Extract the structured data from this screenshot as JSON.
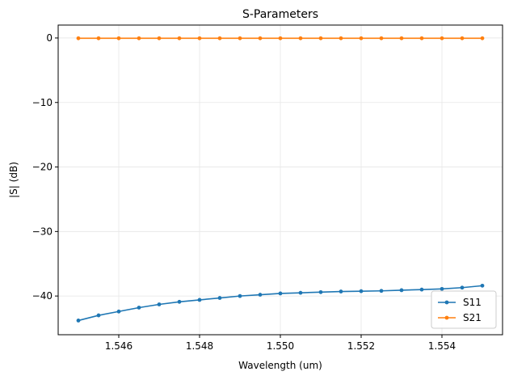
{
  "chart_data": {
    "type": "line",
    "title": "S-Parameters",
    "xlabel": "Wavelength (um)",
    "ylabel": "|S| (dB)",
    "xlim": [
      1.5445,
      1.5555
    ],
    "ylim": [
      -46,
      2
    ],
    "xticks": [
      1.546,
      1.548,
      1.55,
      1.552,
      1.554
    ],
    "xtick_labels": [
      "1.546",
      "1.548",
      "1.550",
      "1.552",
      "1.554"
    ],
    "yticks": [
      0,
      -10,
      -20,
      -30,
      -40
    ],
    "ytick_labels": [
      "0",
      "−10",
      "−20",
      "−30",
      "−40"
    ],
    "grid": true,
    "legend_position": "lower-right",
    "x": [
      1.545,
      1.5455,
      1.546,
      1.5465,
      1.547,
      1.5475,
      1.548,
      1.5485,
      1.549,
      1.5495,
      1.55,
      1.5505,
      1.551,
      1.5515,
      1.552,
      1.5525,
      1.553,
      1.5535,
      1.554,
      1.5545,
      1.555
    ],
    "series": [
      {
        "name": "S11",
        "color": "#1f77b4",
        "values": [
          -43.8,
          -43.0,
          -42.4,
          -41.8,
          -41.3,
          -40.9,
          -40.6,
          -40.3,
          -40.0,
          -39.8,
          -39.6,
          -39.5,
          -39.4,
          -39.3,
          -39.25,
          -39.2,
          -39.1,
          -39.0,
          -38.9,
          -38.7,
          -38.4
        ]
      },
      {
        "name": "S21",
        "color": "#ff7f0e",
        "values": [
          -0.05,
          -0.05,
          -0.05,
          -0.05,
          -0.05,
          -0.05,
          -0.05,
          -0.05,
          -0.05,
          -0.05,
          -0.05,
          -0.05,
          -0.05,
          -0.05,
          -0.05,
          -0.05,
          -0.05,
          -0.05,
          -0.05,
          -0.05,
          -0.05
        ]
      }
    ]
  }
}
